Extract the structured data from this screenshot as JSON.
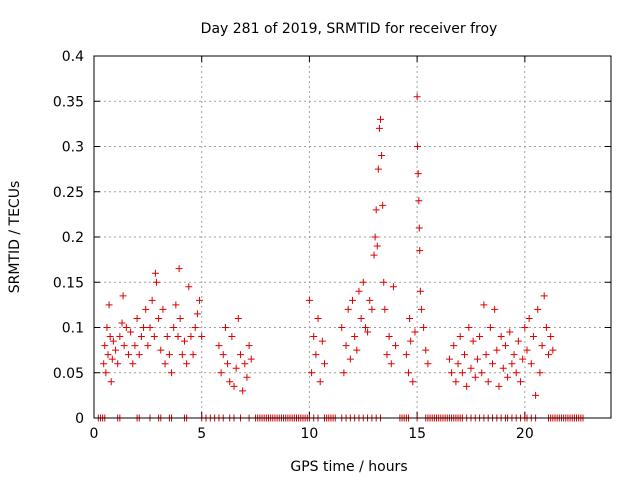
{
  "chart_data": {
    "type": "scatter",
    "title": "Day 281 of 2019, SRMTID for receiver froy",
    "xlabel": "GPS time / hours",
    "ylabel": "SRMTID / TECUs",
    "xlim": [
      0,
      24
    ],
    "ylim": [
      0,
      0.4
    ],
    "grid": true,
    "marker": "+",
    "color": "#e00000",
    "x_ticks": [
      0,
      5,
      10,
      15,
      20
    ],
    "y_ticks": [
      0,
      0.05,
      0.1,
      0.15,
      0.2,
      0.25,
      0.3,
      0.35,
      0.4
    ],
    "y_tick_labels": [
      "0",
      "0.05",
      "0.1",
      "0.15",
      "0.2",
      "0.25",
      "0.3",
      "0.35",
      "0.4"
    ],
    "series": [
      {
        "name": "SRMTID",
        "points": [
          [
            0.45,
            0.06
          ],
          [
            0.5,
            0.08
          ],
          [
            0.55,
            0.05
          ],
          [
            0.6,
            0.1
          ],
          [
            0.65,
            0.07
          ],
          [
            0.7,
            0.125
          ],
          [
            0.75,
            0.09
          ],
          [
            0.8,
            0.04
          ],
          [
            0.85,
            0.065
          ],
          [
            0.9,
            0.085
          ],
          [
            1.0,
            0.075
          ],
          [
            1.1,
            0.06
          ],
          [
            1.2,
            0.09
          ],
          [
            1.3,
            0.105
          ],
          [
            1.35,
            0.135
          ],
          [
            1.4,
            0.08
          ],
          [
            1.5,
            0.1
          ],
          [
            1.6,
            0.07
          ],
          [
            1.7,
            0.095
          ],
          [
            1.8,
            0.06
          ],
          [
            1.9,
            0.08
          ],
          [
            2.0,
            0.11
          ],
          [
            2.1,
            0.07
          ],
          [
            2.2,
            0.09
          ],
          [
            2.3,
            0.1
          ],
          [
            2.4,
            0.12
          ],
          [
            2.5,
            0.08
          ],
          [
            2.6,
            0.1
          ],
          [
            2.7,
            0.13
          ],
          [
            2.8,
            0.09
          ],
          [
            2.85,
            0.16
          ],
          [
            2.9,
            0.15
          ],
          [
            3.0,
            0.11
          ],
          [
            3.1,
            0.075
          ],
          [
            3.2,
            0.12
          ],
          [
            3.3,
            0.06
          ],
          [
            3.4,
            0.09
          ],
          [
            3.5,
            0.07
          ],
          [
            3.6,
            0.05
          ],
          [
            3.7,
            0.1
          ],
          [
            3.8,
            0.125
          ],
          [
            3.9,
            0.09
          ],
          [
            3.95,
            0.165
          ],
          [
            4.0,
            0.11
          ],
          [
            4.1,
            0.07
          ],
          [
            4.2,
            0.085
          ],
          [
            4.3,
            0.06
          ],
          [
            4.4,
            0.145
          ],
          [
            4.5,
            0.09
          ],
          [
            4.6,
            0.07
          ],
          [
            4.7,
            0.1
          ],
          [
            4.8,
            0.115
          ],
          [
            4.9,
            0.13
          ],
          [
            5.0,
            0.09
          ],
          [
            5.8,
            0.08
          ],
          [
            5.9,
            0.05
          ],
          [
            6.0,
            0.07
          ],
          [
            6.1,
            0.1
          ],
          [
            6.2,
            0.06
          ],
          [
            6.3,
            0.04
          ],
          [
            6.4,
            0.09
          ],
          [
            6.5,
            0.035
          ],
          [
            6.6,
            0.055
          ],
          [
            6.7,
            0.11
          ],
          [
            6.8,
            0.07
          ],
          [
            6.9,
            0.03
          ],
          [
            7.0,
            0.06
          ],
          [
            7.1,
            0.045
          ],
          [
            7.2,
            0.08
          ],
          [
            7.3,
            0.065
          ],
          [
            10.0,
            0.13
          ],
          [
            10.1,
            0.05
          ],
          [
            10.2,
            0.09
          ],
          [
            10.3,
            0.07
          ],
          [
            10.4,
            0.11
          ],
          [
            10.5,
            0.04
          ],
          [
            10.6,
            0.085
          ],
          [
            10.7,
            0.06
          ],
          [
            11.5,
            0.1
          ],
          [
            11.6,
            0.05
          ],
          [
            11.7,
            0.08
          ],
          [
            11.8,
            0.12
          ],
          [
            11.9,
            0.065
          ],
          [
            12.0,
            0.13
          ],
          [
            12.1,
            0.09
          ],
          [
            12.2,
            0.075
          ],
          [
            12.3,
            0.14
          ],
          [
            12.4,
            0.11
          ],
          [
            12.5,
            0.15
          ],
          [
            12.6,
            0.1
          ],
          [
            12.7,
            0.095
          ],
          [
            12.8,
            0.13
          ],
          [
            12.9,
            0.12
          ],
          [
            13.0,
            0.18
          ],
          [
            13.05,
            0.2
          ],
          [
            13.1,
            0.23
          ],
          [
            13.15,
            0.19
          ],
          [
            13.2,
            0.275
          ],
          [
            13.25,
            0.32
          ],
          [
            13.3,
            0.33
          ],
          [
            13.35,
            0.29
          ],
          [
            13.4,
            0.235
          ],
          [
            13.45,
            0.15
          ],
          [
            13.5,
            0.12
          ],
          [
            13.6,
            0.07
          ],
          [
            13.7,
            0.09
          ],
          [
            13.8,
            0.06
          ],
          [
            13.9,
            0.145
          ],
          [
            14.0,
            0.08
          ],
          [
            14.5,
            0.07
          ],
          [
            14.6,
            0.05
          ],
          [
            14.65,
            0.11
          ],
          [
            14.7,
            0.085
          ],
          [
            14.8,
            0.04
          ],
          [
            14.9,
            0.095
          ],
          [
            15.0,
            0.355
          ],
          [
            15.02,
            0.3
          ],
          [
            15.05,
            0.27
          ],
          [
            15.08,
            0.24
          ],
          [
            15.1,
            0.21
          ],
          [
            15.12,
            0.185
          ],
          [
            15.15,
            0.14
          ],
          [
            15.2,
            0.12
          ],
          [
            15.3,
            0.1
          ],
          [
            15.4,
            0.075
          ],
          [
            15.5,
            0.06
          ],
          [
            16.5,
            0.065
          ],
          [
            16.6,
            0.05
          ],
          [
            16.7,
            0.08
          ],
          [
            16.8,
            0.04
          ],
          [
            16.9,
            0.06
          ],
          [
            17.0,
            0.09
          ],
          [
            17.1,
            0.05
          ],
          [
            17.2,
            0.07
          ],
          [
            17.3,
            0.035
          ],
          [
            17.4,
            0.1
          ],
          [
            17.5,
            0.055
          ],
          [
            17.6,
            0.085
          ],
          [
            17.7,
            0.045
          ],
          [
            17.8,
            0.065
          ],
          [
            17.9,
            0.09
          ],
          [
            18.0,
            0.05
          ],
          [
            18.1,
            0.125
          ],
          [
            18.2,
            0.07
          ],
          [
            18.3,
            0.04
          ],
          [
            18.4,
            0.1
          ],
          [
            18.5,
            0.06
          ],
          [
            18.6,
            0.12
          ],
          [
            18.7,
            0.075
          ],
          [
            18.8,
            0.035
          ],
          [
            18.9,
            0.09
          ],
          [
            19.0,
            0.055
          ],
          [
            19.1,
            0.08
          ],
          [
            19.2,
            0.045
          ],
          [
            19.3,
            0.095
          ],
          [
            19.4,
            0.06
          ],
          [
            19.5,
            0.07
          ],
          [
            19.6,
            0.05
          ],
          [
            19.7,
            0.085
          ],
          [
            19.8,
            0.04
          ],
          [
            19.9,
            0.065
          ],
          [
            20.0,
            0.1
          ],
          [
            20.1,
            0.075
          ],
          [
            20.2,
            0.11
          ],
          [
            20.3,
            0.06
          ],
          [
            20.4,
            0.09
          ],
          [
            20.5,
            0.025
          ],
          [
            20.6,
            0.12
          ],
          [
            20.7,
            0.05
          ],
          [
            20.8,
            0.08
          ],
          [
            20.9,
            0.135
          ],
          [
            21.0,
            0.1
          ],
          [
            21.1,
            0.07
          ],
          [
            21.2,
            0.09
          ],
          [
            21.3,
            0.075
          ],
          [
            0.2,
            0
          ],
          [
            0.3,
            0
          ],
          [
            0.4,
            0
          ],
          [
            0.5,
            0
          ],
          [
            1.1,
            0
          ],
          [
            1.2,
            0
          ],
          [
            2.0,
            0
          ],
          [
            2.1,
            0
          ],
          [
            2.6,
            0
          ],
          [
            3.0,
            0
          ],
          [
            3.1,
            0
          ],
          [
            3.5,
            0
          ],
          [
            3.6,
            0
          ],
          [
            4.2,
            0
          ],
          [
            4.3,
            0
          ],
          [
            5.0,
            0
          ],
          [
            5.2,
            0
          ],
          [
            5.4,
            0
          ],
          [
            5.6,
            0
          ],
          [
            5.8,
            0
          ],
          [
            6.0,
            0
          ],
          [
            6.3,
            0
          ],
          [
            6.5,
            0
          ],
          [
            6.8,
            0
          ],
          [
            7.2,
            0
          ],
          [
            7.5,
            0
          ],
          [
            7.6,
            0
          ],
          [
            7.7,
            0
          ],
          [
            7.8,
            0
          ],
          [
            7.9,
            0
          ],
          [
            8.0,
            0
          ],
          [
            8.1,
            0
          ],
          [
            8.2,
            0
          ],
          [
            8.3,
            0
          ],
          [
            8.4,
            0
          ],
          [
            8.5,
            0
          ],
          [
            8.6,
            0
          ],
          [
            8.7,
            0
          ],
          [
            8.8,
            0
          ],
          [
            8.9,
            0
          ],
          [
            9.0,
            0
          ],
          [
            9.1,
            0
          ],
          [
            9.2,
            0
          ],
          [
            9.3,
            0
          ],
          [
            9.4,
            0
          ],
          [
            9.5,
            0
          ],
          [
            9.6,
            0
          ],
          [
            9.7,
            0
          ],
          [
            9.8,
            0
          ],
          [
            9.9,
            0
          ],
          [
            10.0,
            0
          ],
          [
            10.2,
            0
          ],
          [
            10.4,
            0
          ],
          [
            10.7,
            0
          ],
          [
            10.8,
            0
          ],
          [
            10.9,
            0
          ],
          [
            11.0,
            0
          ],
          [
            11.1,
            0
          ],
          [
            11.2,
            0
          ],
          [
            11.5,
            0
          ],
          [
            11.7,
            0
          ],
          [
            11.9,
            0
          ],
          [
            12.1,
            0
          ],
          [
            12.3,
            0
          ],
          [
            12.5,
            0
          ],
          [
            12.7,
            0
          ],
          [
            12.9,
            0
          ],
          [
            13.1,
            0
          ],
          [
            13.3,
            0
          ],
          [
            14.2,
            0
          ],
          [
            14.3,
            0
          ],
          [
            14.4,
            0
          ],
          [
            14.5,
            0
          ],
          [
            14.6,
            0
          ],
          [
            15.0,
            0
          ],
          [
            15.4,
            0
          ],
          [
            15.5,
            0
          ],
          [
            15.6,
            0
          ],
          [
            15.7,
            0
          ],
          [
            15.8,
            0
          ],
          [
            15.9,
            0
          ],
          [
            16.0,
            0
          ],
          [
            16.1,
            0
          ],
          [
            16.2,
            0
          ],
          [
            16.3,
            0
          ],
          [
            16.4,
            0
          ],
          [
            16.5,
            0
          ],
          [
            16.6,
            0
          ],
          [
            16.7,
            0
          ],
          [
            16.8,
            0
          ],
          [
            16.9,
            0
          ],
          [
            17.0,
            0
          ],
          [
            17.1,
            0
          ],
          [
            17.3,
            0
          ],
          [
            17.5,
            0
          ],
          [
            17.7,
            0
          ],
          [
            17.9,
            0
          ],
          [
            18.1,
            0
          ],
          [
            18.3,
            0
          ],
          [
            18.5,
            0
          ],
          [
            18.7,
            0
          ],
          [
            18.9,
            0
          ],
          [
            19.1,
            0
          ],
          [
            19.2,
            0
          ],
          [
            19.4,
            0
          ],
          [
            19.6,
            0
          ],
          [
            19.8,
            0
          ],
          [
            20.0,
            0
          ],
          [
            20.1,
            0
          ],
          [
            20.3,
            0
          ],
          [
            20.5,
            0
          ],
          [
            21.1,
            0
          ],
          [
            21.2,
            0
          ],
          [
            21.3,
            0
          ],
          [
            21.4,
            0
          ],
          [
            21.5,
            0
          ],
          [
            21.6,
            0
          ],
          [
            21.7,
            0
          ],
          [
            21.8,
            0
          ],
          [
            21.9,
            0
          ],
          [
            22.0,
            0
          ],
          [
            22.1,
            0
          ],
          [
            22.2,
            0
          ],
          [
            22.3,
            0
          ],
          [
            22.4,
            0
          ],
          [
            22.5,
            0
          ],
          [
            22.6,
            0
          ],
          [
            22.7,
            0
          ]
        ]
      }
    ]
  }
}
